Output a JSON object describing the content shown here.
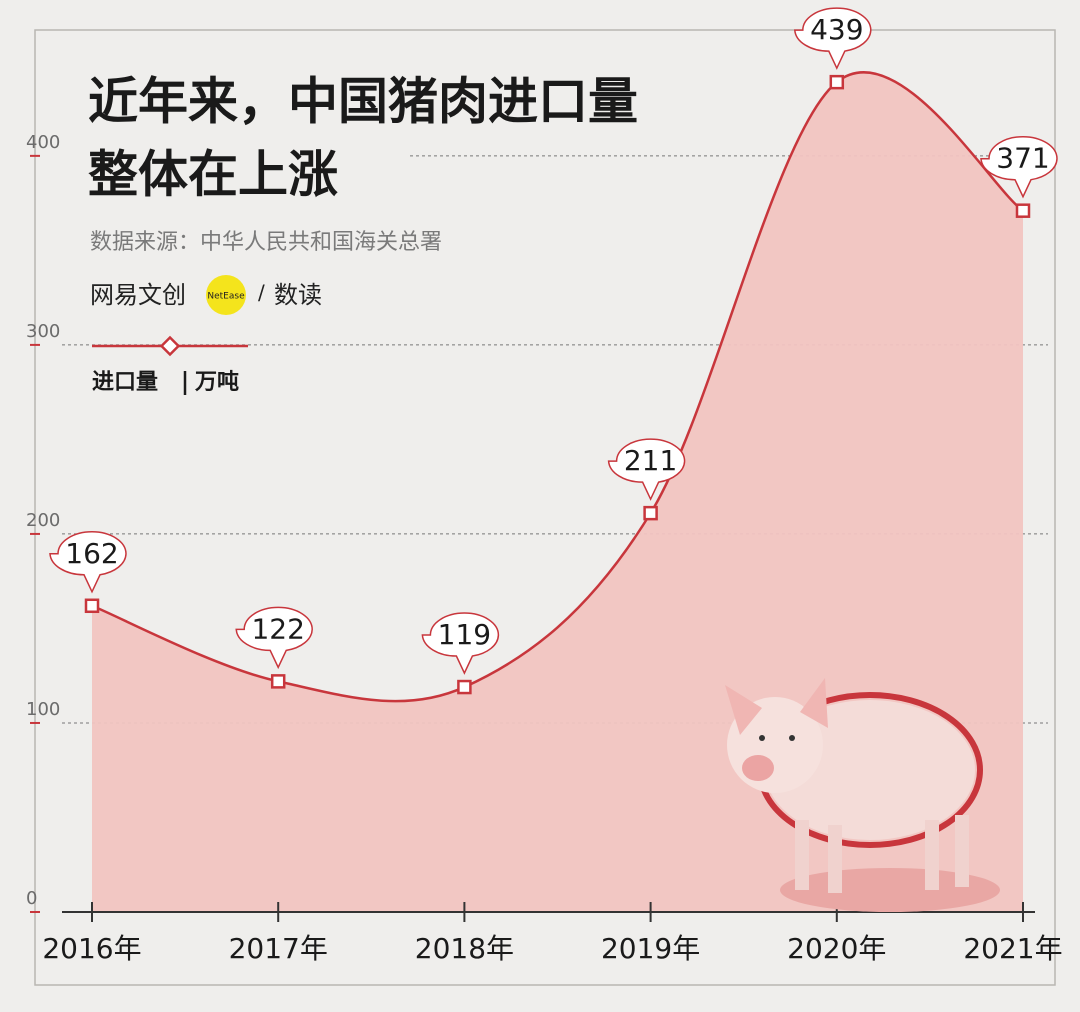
{
  "chart_data": {
    "type": "line",
    "title": [
      "近年来，中国猪肉进口量",
      "整体在上涨"
    ],
    "source": "数据来源：中华人民共和国海关总署",
    "brand": {
      "name": "网易文创",
      "logo": "NetEase",
      "separator": "/",
      "column": "数读"
    },
    "categories": [
      "2016年",
      "2017年",
      "2018年",
      "2019年",
      "2020年",
      "2021年"
    ],
    "series": [
      {
        "name": "进口量",
        "color": "#c8363c",
        "values": [
          162,
          122,
          119,
          211,
          439,
          371
        ]
      }
    ],
    "unit": "万吨",
    "fill": "#f1c4c1",
    "ylim": [
      0,
      465
    ],
    "yticks": [
      0,
      100,
      200,
      300,
      400
    ],
    "grid": true
  }
}
